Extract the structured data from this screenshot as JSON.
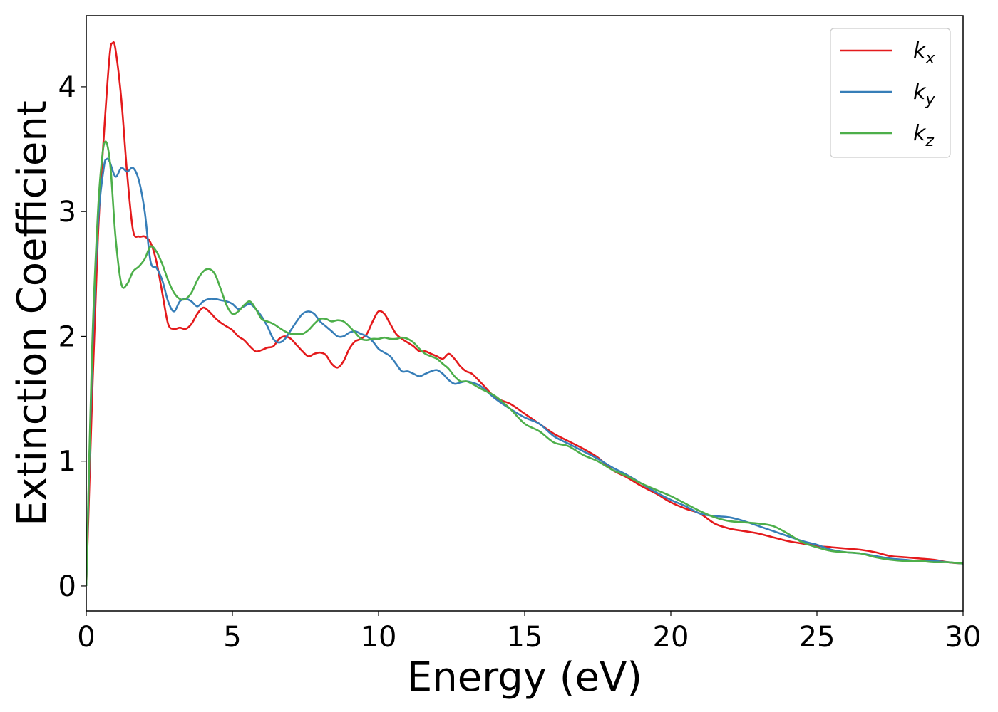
{
  "chart_data": {
    "type": "line",
    "xlabel": "Energy (eV)",
    "ylabel": "Extinction Coefficient",
    "xlim": [
      0,
      30
    ],
    "ylim": [
      -0.2,
      4.57
    ],
    "xticks": [
      0,
      5,
      10,
      15,
      20,
      25,
      30
    ],
    "yticks": [
      0,
      1,
      2,
      3,
      4
    ],
    "xtick_labels": [
      "0",
      "5",
      "10",
      "15",
      "20",
      "25",
      "30"
    ],
    "ytick_labels": [
      "0",
      "1",
      "2",
      "3",
      "4"
    ],
    "grid": false,
    "legend_placement": "top-right",
    "series": [
      {
        "name": "k_x",
        "label_base": "k",
        "label_sub": "x",
        "color": "#e41a1c",
        "x": [
          0,
          0.2,
          0.4,
          0.6,
          0.8,
          0.9,
          1.0,
          1.2,
          1.4,
          1.6,
          1.8,
          2.0,
          2.2,
          2.4,
          2.6,
          2.8,
          3.0,
          3.2,
          3.4,
          3.6,
          3.8,
          4.0,
          4.2,
          4.4,
          4.6,
          4.8,
          5.0,
          5.2,
          5.4,
          5.6,
          5.8,
          6.0,
          6.2,
          6.4,
          6.6,
          6.8,
          7.0,
          7.2,
          7.4,
          7.6,
          7.8,
          8.0,
          8.2,
          8.4,
          8.6,
          8.8,
          9.0,
          9.2,
          9.4,
          9.6,
          9.8,
          10.0,
          10.2,
          10.4,
          10.6,
          10.8,
          11.0,
          11.2,
          11.4,
          11.6,
          11.8,
          12.0,
          12.2,
          12.4,
          12.6,
          12.8,
          13.0,
          13.2,
          13.5,
          14.0,
          14.5,
          15.0,
          15.5,
          16.0,
          16.5,
          17.0,
          17.5,
          18.0,
          18.5,
          19.0,
          19.5,
          20.0,
          20.5,
          21.0,
          21.5,
          22.0,
          22.5,
          23.0,
          23.5,
          24.0,
          24.5,
          25.0,
          25.5,
          26.0,
          26.5,
          27.0,
          27.5,
          28.0,
          28.5,
          29.0,
          29.5,
          30.0
        ],
        "y": [
          0.0,
          1.5,
          2.8,
          3.6,
          4.25,
          4.35,
          4.3,
          3.9,
          3.3,
          2.85,
          2.8,
          2.8,
          2.75,
          2.6,
          2.35,
          2.1,
          2.06,
          2.07,
          2.06,
          2.1,
          2.18,
          2.23,
          2.2,
          2.15,
          2.11,
          2.08,
          2.05,
          2.0,
          1.97,
          1.92,
          1.88,
          1.89,
          1.91,
          1.92,
          1.98,
          2.0,
          1.98,
          1.93,
          1.88,
          1.84,
          1.86,
          1.87,
          1.85,
          1.78,
          1.75,
          1.8,
          1.9,
          1.96,
          1.98,
          2.02,
          2.12,
          2.2,
          2.18,
          2.1,
          2.02,
          1.98,
          1.95,
          1.92,
          1.88,
          1.88,
          1.86,
          1.84,
          1.82,
          1.86,
          1.82,
          1.76,
          1.72,
          1.7,
          1.63,
          1.51,
          1.46,
          1.38,
          1.3,
          1.22,
          1.16,
          1.1,
          1.03,
          0.93,
          0.87,
          0.8,
          0.74,
          0.67,
          0.62,
          0.58,
          0.5,
          0.46,
          0.44,
          0.42,
          0.39,
          0.36,
          0.34,
          0.32,
          0.31,
          0.3,
          0.29,
          0.27,
          0.24,
          0.23,
          0.22,
          0.21,
          0.19,
          0.18
        ]
      },
      {
        "name": "k_y",
        "label_base": "k",
        "label_sub": "y",
        "color": "#377eb8",
        "x": [
          0,
          0.2,
          0.4,
          0.6,
          0.7,
          0.8,
          1.0,
          1.2,
          1.4,
          1.6,
          1.8,
          2.0,
          2.2,
          2.4,
          2.6,
          2.8,
          3.0,
          3.2,
          3.4,
          3.6,
          3.8,
          4.0,
          4.2,
          4.4,
          4.6,
          4.8,
          5.0,
          5.2,
          5.4,
          5.6,
          5.8,
          6.0,
          6.2,
          6.4,
          6.6,
          6.8,
          7.0,
          7.2,
          7.4,
          7.6,
          7.8,
          8.0,
          8.2,
          8.4,
          8.6,
          8.8,
          9.0,
          9.2,
          9.4,
          9.6,
          9.8,
          10.0,
          10.2,
          10.4,
          10.6,
          10.8,
          11.0,
          11.2,
          11.4,
          11.6,
          11.8,
          12.0,
          12.2,
          12.4,
          12.6,
          12.8,
          13.0,
          13.2,
          13.5,
          14.0,
          14.5,
          15.0,
          15.5,
          16.0,
          16.5,
          17.0,
          17.5,
          18.0,
          18.5,
          19.0,
          19.5,
          20.0,
          20.5,
          21.0,
          21.5,
          22.0,
          22.5,
          23.0,
          23.5,
          24.0,
          24.5,
          25.0,
          25.5,
          26.0,
          26.5,
          27.0,
          27.5,
          28.0,
          28.5,
          29.0,
          29.5,
          30.0
        ],
        "y": [
          0.0,
          1.8,
          2.9,
          3.35,
          3.42,
          3.4,
          3.28,
          3.35,
          3.32,
          3.35,
          3.25,
          3.0,
          2.6,
          2.55,
          2.45,
          2.28,
          2.2,
          2.28,
          2.3,
          2.28,
          2.24,
          2.28,
          2.3,
          2.3,
          2.29,
          2.28,
          2.26,
          2.22,
          2.24,
          2.26,
          2.22,
          2.16,
          2.08,
          1.98,
          1.95,
          1.98,
          2.05,
          2.12,
          2.18,
          2.2,
          2.18,
          2.12,
          2.08,
          2.04,
          2.0,
          2.0,
          2.03,
          2.04,
          2.02,
          2.0,
          1.96,
          1.9,
          1.87,
          1.84,
          1.78,
          1.72,
          1.72,
          1.7,
          1.68,
          1.7,
          1.72,
          1.73,
          1.7,
          1.65,
          1.62,
          1.63,
          1.64,
          1.63,
          1.6,
          1.5,
          1.42,
          1.35,
          1.3,
          1.2,
          1.14,
          1.08,
          1.02,
          0.95,
          0.89,
          0.82,
          0.75,
          0.69,
          0.64,
          0.58,
          0.56,
          0.55,
          0.52,
          0.48,
          0.44,
          0.4,
          0.36,
          0.33,
          0.29,
          0.27,
          0.26,
          0.24,
          0.22,
          0.21,
          0.2,
          0.2,
          0.19,
          0.18
        ]
      },
      {
        "name": "k_z",
        "label_base": "k",
        "label_sub": "z",
        "color": "#4daf4a",
        "x": [
          0,
          0.2,
          0.4,
          0.55,
          0.65,
          0.75,
          0.85,
          1.0,
          1.2,
          1.4,
          1.6,
          1.8,
          2.0,
          2.2,
          2.4,
          2.6,
          2.8,
          3.0,
          3.2,
          3.4,
          3.6,
          3.8,
          4.0,
          4.2,
          4.4,
          4.6,
          4.8,
          5.0,
          5.2,
          5.4,
          5.6,
          5.8,
          6.0,
          6.2,
          6.4,
          6.6,
          6.8,
          7.0,
          7.2,
          7.4,
          7.6,
          7.8,
          8.0,
          8.2,
          8.4,
          8.6,
          8.8,
          9.0,
          9.2,
          9.4,
          9.6,
          9.8,
          10.0,
          10.2,
          10.4,
          10.6,
          10.8,
          11.0,
          11.2,
          11.4,
          11.6,
          11.8,
          12.0,
          12.2,
          12.4,
          12.6,
          12.8,
          13.0,
          13.2,
          13.5,
          14.0,
          14.5,
          15.0,
          15.5,
          16.0,
          16.5,
          17.0,
          17.5,
          18.0,
          18.5,
          19.0,
          19.5,
          20.0,
          20.5,
          21.0,
          21.5,
          22.0,
          22.5,
          23.0,
          23.5,
          24.0,
          24.5,
          25.0,
          25.5,
          26.0,
          26.5,
          27.0,
          27.5,
          28.0,
          28.5,
          29.0,
          29.5,
          30.0
        ],
        "y": [
          0.0,
          1.9,
          3.0,
          3.45,
          3.56,
          3.5,
          3.3,
          2.8,
          2.42,
          2.42,
          2.52,
          2.56,
          2.62,
          2.72,
          2.68,
          2.58,
          2.45,
          2.35,
          2.3,
          2.3,
          2.35,
          2.45,
          2.52,
          2.54,
          2.5,
          2.38,
          2.25,
          2.18,
          2.2,
          2.25,
          2.28,
          2.22,
          2.14,
          2.12,
          2.1,
          2.07,
          2.04,
          2.02,
          2.02,
          2.02,
          2.05,
          2.1,
          2.14,
          2.14,
          2.12,
          2.13,
          2.12,
          2.08,
          2.03,
          1.98,
          1.97,
          1.98,
          1.98,
          1.99,
          1.98,
          1.98,
          1.99,
          1.98,
          1.95,
          1.9,
          1.86,
          1.84,
          1.82,
          1.78,
          1.74,
          1.68,
          1.64,
          1.64,
          1.62,
          1.58,
          1.52,
          1.42,
          1.3,
          1.24,
          1.15,
          1.12,
          1.05,
          1.0,
          0.93,
          0.88,
          0.82,
          0.77,
          0.72,
          0.66,
          0.6,
          0.55,
          0.52,
          0.51,
          0.5,
          0.48,
          0.42,
          0.35,
          0.31,
          0.28,
          0.27,
          0.26,
          0.23,
          0.21,
          0.2,
          0.2,
          0.19,
          0.19,
          0.18
        ]
      }
    ]
  }
}
